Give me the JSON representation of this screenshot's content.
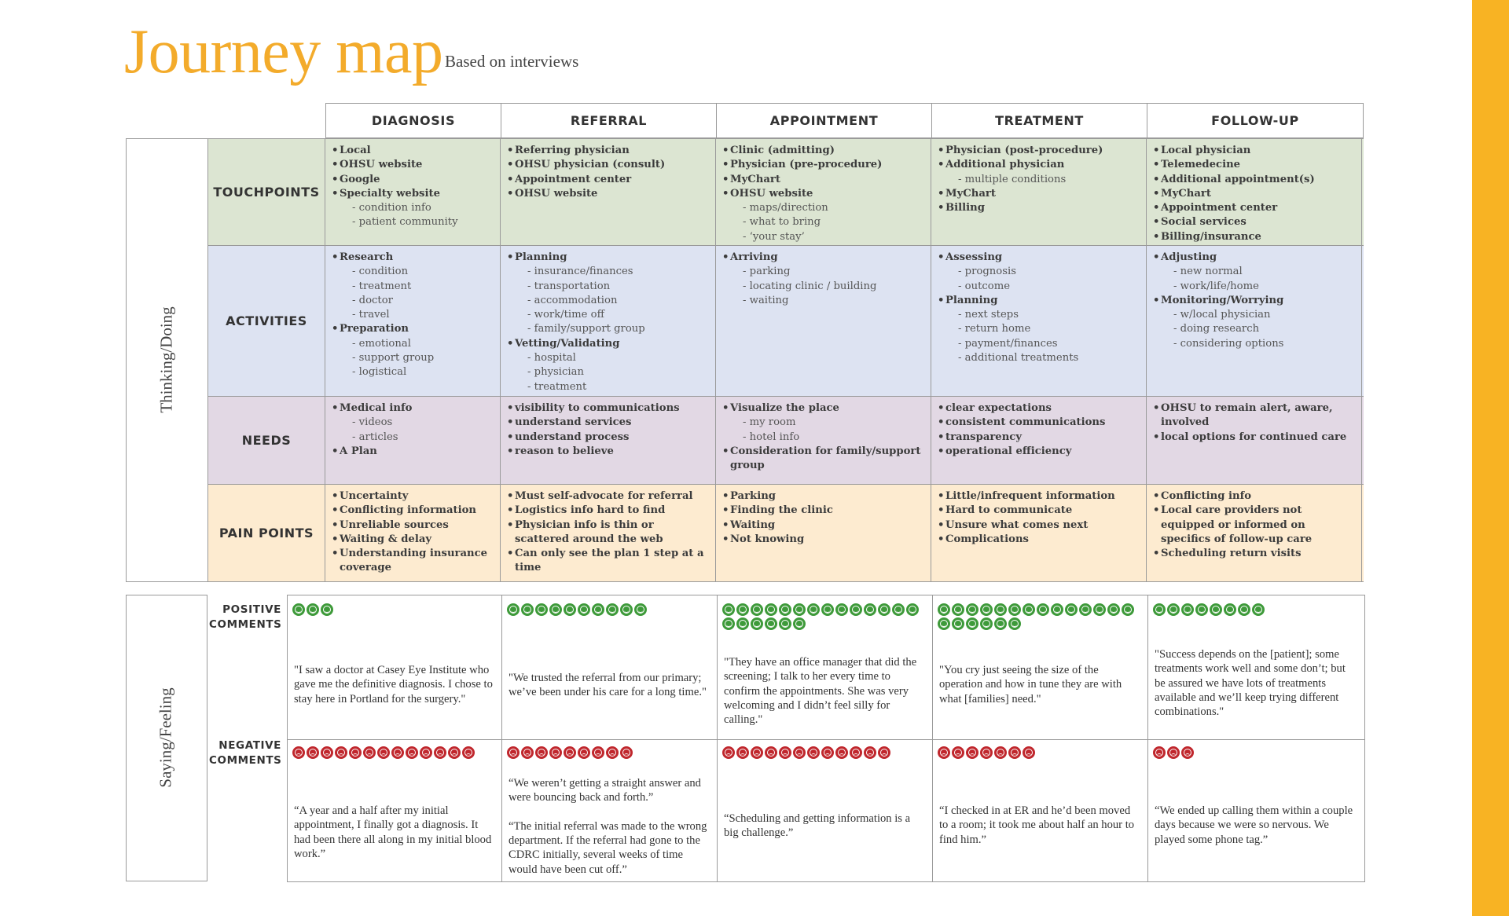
{
  "header": {
    "title": "Journey map",
    "subtitle": "Based on interviews"
  },
  "colors": {
    "accent": "#f8b323",
    "touchpoints": "#dce5d2",
    "activities": "#dde3f2",
    "needs": "#e2d8e4",
    "pain_points": "#fdebd0",
    "positive": "#3e9a3a",
    "negative": "#c0272d"
  },
  "section_labels": {
    "thinking": "Thinking/Doing",
    "saying": "Saying/Feeling"
  },
  "phases": [
    "DIAGNOSIS",
    "REFERRAL",
    "APPOINTMENT",
    "TREATMENT",
    "FOLLOW-UP"
  ],
  "rows": [
    {
      "label": "TOUCHPOINTS",
      "cells": [
        [
          {
            "t": "Local",
            "l": 1
          },
          {
            "t": "OHSU website",
            "l": 1
          },
          {
            "t": "Google",
            "l": 1
          },
          {
            "t": "Specialty website",
            "l": 1
          },
          {
            "t": "condition info",
            "l": 2
          },
          {
            "t": "patient community",
            "l": 2
          }
        ],
        [
          {
            "t": "Referring physician",
            "l": 1
          },
          {
            "t": "OHSU physician (consult)",
            "l": 1
          },
          {
            "t": "Appointment center",
            "l": 1
          },
          {
            "t": "OHSU website",
            "l": 1
          }
        ],
        [
          {
            "t": "Clinic (admitting)",
            "l": 1
          },
          {
            "t": "Physician (pre-procedure)",
            "l": 1
          },
          {
            "t": "MyChart",
            "l": 1
          },
          {
            "t": "OHSU website",
            "l": 1
          },
          {
            "t": "maps/direction",
            "l": 2
          },
          {
            "t": "what to bring",
            "l": 2
          },
          {
            "t": "‘your stay’",
            "l": 2
          }
        ],
        [
          {
            "t": "Physician (post-procedure)",
            "l": 1
          },
          {
            "t": "Additional physician",
            "l": 1
          },
          {
            "t": "multiple conditions",
            "l": 2
          },
          {
            "t": "MyChart",
            "l": 1
          },
          {
            "t": "Billing",
            "l": 1
          }
        ],
        [
          {
            "t": "Local physician",
            "l": 1
          },
          {
            "t": "Telemedecine",
            "l": 1
          },
          {
            "t": "Additional appointment(s)",
            "l": 1
          },
          {
            "t": "MyChart",
            "l": 1
          },
          {
            "t": "Appointment center",
            "l": 1
          },
          {
            "t": "Social services",
            "l": 1
          },
          {
            "t": "Billing/insurance",
            "l": 1
          }
        ]
      ]
    },
    {
      "label": "ACTIVITIES",
      "cells": [
        [
          {
            "t": "Research",
            "l": 1
          },
          {
            "t": "condition",
            "l": 2
          },
          {
            "t": "treatment",
            "l": 2
          },
          {
            "t": "doctor",
            "l": 2
          },
          {
            "t": "travel",
            "l": 2
          },
          {
            "t": "Preparation",
            "l": 1
          },
          {
            "t": "emotional",
            "l": 2
          },
          {
            "t": "support group",
            "l": 2
          },
          {
            "t": "logistical",
            "l": 2
          }
        ],
        [
          {
            "t": "Planning",
            "l": 1
          },
          {
            "t": "insurance/finances",
            "l": 2
          },
          {
            "t": "transportation",
            "l": 2
          },
          {
            "t": "accommodation",
            "l": 2
          },
          {
            "t": "work/time off",
            "l": 2
          },
          {
            "t": "family/support group",
            "l": 2
          },
          {
            "t": "Vetting/Validating",
            "l": 1
          },
          {
            "t": "hospital",
            "l": 2
          },
          {
            "t": "physician",
            "l": 2
          },
          {
            "t": "treatment",
            "l": 2
          }
        ],
        [
          {
            "t": "Arriving",
            "l": 1
          },
          {
            "t": "parking",
            "l": 2
          },
          {
            "t": "locating clinic / building",
            "l": 2
          },
          {
            "t": "waiting",
            "l": 2
          }
        ],
        [
          {
            "t": "Assessing",
            "l": 1
          },
          {
            "t": "prognosis",
            "l": 2
          },
          {
            "t": "outcome",
            "l": 2
          },
          {
            "t": "Planning",
            "l": 1
          },
          {
            "t": "next steps",
            "l": 2
          },
          {
            "t": "return home",
            "l": 2
          },
          {
            "t": "payment/finances",
            "l": 2
          },
          {
            "t": "additional treatments",
            "l": 2
          }
        ],
        [
          {
            "t": "Adjusting",
            "l": 1
          },
          {
            "t": "new normal",
            "l": 2
          },
          {
            "t": "work/life/home",
            "l": 2
          },
          {
            "t": "Monitoring/Worrying",
            "l": 1
          },
          {
            "t": "w/local physician",
            "l": 2
          },
          {
            "t": "doing research",
            "l": 2
          },
          {
            "t": "considering options",
            "l": 2
          }
        ]
      ]
    },
    {
      "label": "NEEDS",
      "cells": [
        [
          {
            "t": "Medical info",
            "l": 1
          },
          {
            "t": "videos",
            "l": 2
          },
          {
            "t": "articles",
            "l": 2
          },
          {
            "t": "A Plan",
            "l": 1
          }
        ],
        [
          {
            "t": "visibility to communications",
            "l": 1
          },
          {
            "t": "understand services",
            "l": 1
          },
          {
            "t": "understand process",
            "l": 1
          },
          {
            "t": "reason to believe",
            "l": 1
          }
        ],
        [
          {
            "t": "Visualize the place",
            "l": 1
          },
          {
            "t": "my room",
            "l": 2
          },
          {
            "t": "hotel info",
            "l": 2
          },
          {
            "t": "Consideration for family/support group",
            "l": 1
          }
        ],
        [
          {
            "t": "clear expectations",
            "l": 1
          },
          {
            "t": "consistent communications",
            "l": 1
          },
          {
            "t": "transparency",
            "l": 1
          },
          {
            "t": "operational efficiency",
            "l": 1
          }
        ],
        [
          {
            "t": "OHSU to remain alert, aware, involved",
            "l": 1
          },
          {
            "t": "local options for continued care",
            "l": 1
          }
        ]
      ]
    },
    {
      "label": "PAIN POINTS",
      "cells": [
        [
          {
            "t": "Uncertainty",
            "l": 1
          },
          {
            "t": "Conflicting information",
            "l": 1
          },
          {
            "t": "Unreliable sources",
            "l": 1
          },
          {
            "t": "Waiting & delay",
            "l": 1
          },
          {
            "t": "Understanding insurance coverage",
            "l": 1
          }
        ],
        [
          {
            "t": "Must self-advocate for referral",
            "l": 1
          },
          {
            "t": "Logistics info hard to find",
            "l": 1
          },
          {
            "t": "Physician info is thin or scattered around the web",
            "l": 1
          },
          {
            "t": "Can only see the plan 1 step at a time",
            "l": 1
          }
        ],
        [
          {
            "t": "Parking",
            "l": 1
          },
          {
            "t": "Finding the clinic",
            "l": 1
          },
          {
            "t": "Waiting",
            "l": 1
          },
          {
            "t": "Not knowing",
            "l": 1
          }
        ],
        [
          {
            "t": "Little/infrequent information",
            "l": 1
          },
          {
            "t": "Hard to communicate",
            "l": 1
          },
          {
            "t": "Unsure what comes next",
            "l": 1
          },
          {
            "t": "Complications",
            "l": 1
          }
        ],
        [
          {
            "t": "Conflicting info",
            "l": 1
          },
          {
            "t": "Local care providers not equipped or informed on specifics of follow-up care",
            "l": 1
          },
          {
            "t": "Scheduling return visits",
            "l": 1
          }
        ]
      ]
    }
  ],
  "saying": {
    "positive_label": "POSITIVE\nCOMMENTS",
    "negative_label": "NEGATIVE\nCOMMENTS",
    "columns": [
      {
        "positive_count": 3,
        "positive_quote": "\"I saw a doctor at Casey Eye Institute who gave me the definitive diagnosis. I chose to stay here in Portland for the surgery.\"",
        "negative_count": 13,
        "negative_quote": "“A year and a half after my initial appointment, I finally got a diagnosis. It had been there all along in my initial blood work.”"
      },
      {
        "positive_count": 10,
        "positive_quote": "\"We trusted the referral from our primary; we’ve been under his care for a long time.\"",
        "negative_count": 9,
        "negative_quote": "“We weren’t getting a straight answer and were bouncing back and forth.”\n\n“The initial referral was made to the wrong department. If the referral had gone to the CDRC initially, several weeks of time would have been cut off.”"
      },
      {
        "positive_count": 20,
        "positive_quote": "\"They have an office manager that did the screening; I talk to her every time to confirm the appointments. She was very welcoming and I didn’t feel silly for calling.\"",
        "negative_count": 12,
        "negative_quote": "“Scheduling and getting information is a big challenge.”"
      },
      {
        "positive_count": 20,
        "positive_quote": "\"You cry just seeing the size of the operation and how in tune they are with what [families] need.\"",
        "negative_count": 7,
        "negative_quote": "“I checked in at ER and he’d been moved to a room; it took me about half an hour to find him.”"
      },
      {
        "positive_count": 8,
        "positive_quote": "\"Success depends on the [patient]; some treatments work well and some don’t; but be assured we have lots of treatments available and we’ll keep trying different combinations.\"",
        "negative_count": 3,
        "negative_quote": "“We ended up calling them within a couple days because we were so nervous. We played some phone tag.”"
      }
    ]
  }
}
